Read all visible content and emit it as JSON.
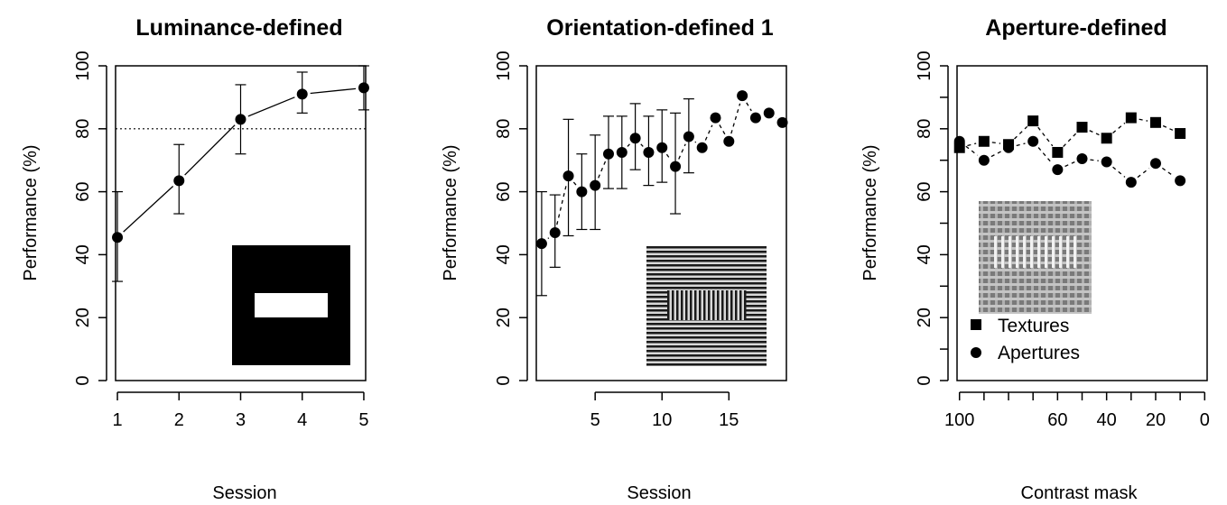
{
  "chart_data": [
    {
      "type": "line",
      "title": "Luminance-defined",
      "xlabel": "Session",
      "ylabel": "Performance (%)",
      "xlim": [
        0.97,
        5.03
      ],
      "ylim": [
        0,
        100
      ],
      "xticks": [
        1,
        2,
        3,
        4,
        5
      ],
      "yticks": [
        0,
        20,
        40,
        60,
        80,
        100
      ],
      "reference_line": 80,
      "series": [
        {
          "x": [
            1,
            2,
            3,
            4,
            5
          ],
          "values": [
            45.5,
            63.5,
            83,
            91,
            93
          ],
          "err_low": [
            31.5,
            53,
            72,
            85,
            86
          ],
          "err_high": [
            60,
            75,
            94,
            98,
            100
          ]
        }
      ],
      "inset": "white-rectangle-on-black"
    },
    {
      "type": "line",
      "title": "Orientation-defined 1",
      "xlabel": "Session",
      "ylabel": "Performance (%)",
      "xlim": [
        0.6,
        19.3
      ],
      "ylim": [
        0,
        100
      ],
      "xticks": [
        5,
        10,
        15
      ],
      "yticks": [
        0,
        20,
        40,
        60,
        80,
        100
      ],
      "series": [
        {
          "x": [
            1,
            2,
            3,
            4,
            5,
            6,
            7,
            8,
            9,
            10,
            11,
            12,
            13,
            14,
            15,
            16,
            17,
            18,
            19
          ],
          "values": [
            43.5,
            47,
            65,
            60,
            62,
            72,
            72.5,
            77,
            72.5,
            74,
            68,
            77.5,
            74,
            83.5,
            76,
            90.5,
            83.5,
            85,
            82
          ],
          "err_low": [
            27,
            36,
            46,
            48,
            48,
            61,
            61,
            67,
            62,
            63,
            53,
            66,
            null,
            null,
            null,
            null,
            null,
            null,
            null
          ],
          "err_high": [
            60,
            59,
            83,
            72,
            78,
            84,
            84,
            88,
            84,
            86,
            85,
            89.5,
            null,
            null,
            null,
            null,
            null,
            null,
            null
          ]
        }
      ],
      "inset": "orientation-texture"
    },
    {
      "type": "line",
      "title": "Aperture-defined",
      "xlabel": "Contrast mask",
      "ylabel": "Performance (%)",
      "xlim": [
        101,
        -1
      ],
      "ylim": [
        0,
        100
      ],
      "xticks": [
        100,
        90,
        80,
        70,
        60,
        50,
        40,
        30,
        20,
        10,
        0
      ],
      "xtick_labels": [
        "100",
        "",
        "",
        "",
        "60",
        "",
        "40",
        "",
        "20",
        "",
        "0"
      ],
      "yticks": [
        0,
        10,
        20,
        30,
        40,
        50,
        60,
        70,
        80,
        90,
        100
      ],
      "ytick_labels": [
        "0",
        "",
        "20",
        "",
        "40",
        "",
        "60",
        "",
        "80",
        "",
        "100"
      ],
      "series": [
        {
          "name": "Textures",
          "marker": "square",
          "x": [
            100,
            90,
            80,
            70,
            60,
            50,
            40,
            30,
            20,
            10,
            0
          ],
          "values": [
            74,
            76,
            75,
            82.5,
            72.5,
            80.5,
            77,
            83.5,
            82,
            78.5,
            null
          ]
        },
        {
          "name": "Apertures",
          "marker": "circle",
          "x": [
            100,
            90,
            80,
            70,
            60,
            50,
            40,
            30,
            20,
            10,
            0
          ],
          "values": [
            76,
            70,
            74,
            76,
            67,
            70.5,
            69.5,
            63,
            69,
            63.5,
            null
          ]
        }
      ],
      "legend_position": "bottom-left",
      "inset": "aperture-grid-texture"
    }
  ]
}
